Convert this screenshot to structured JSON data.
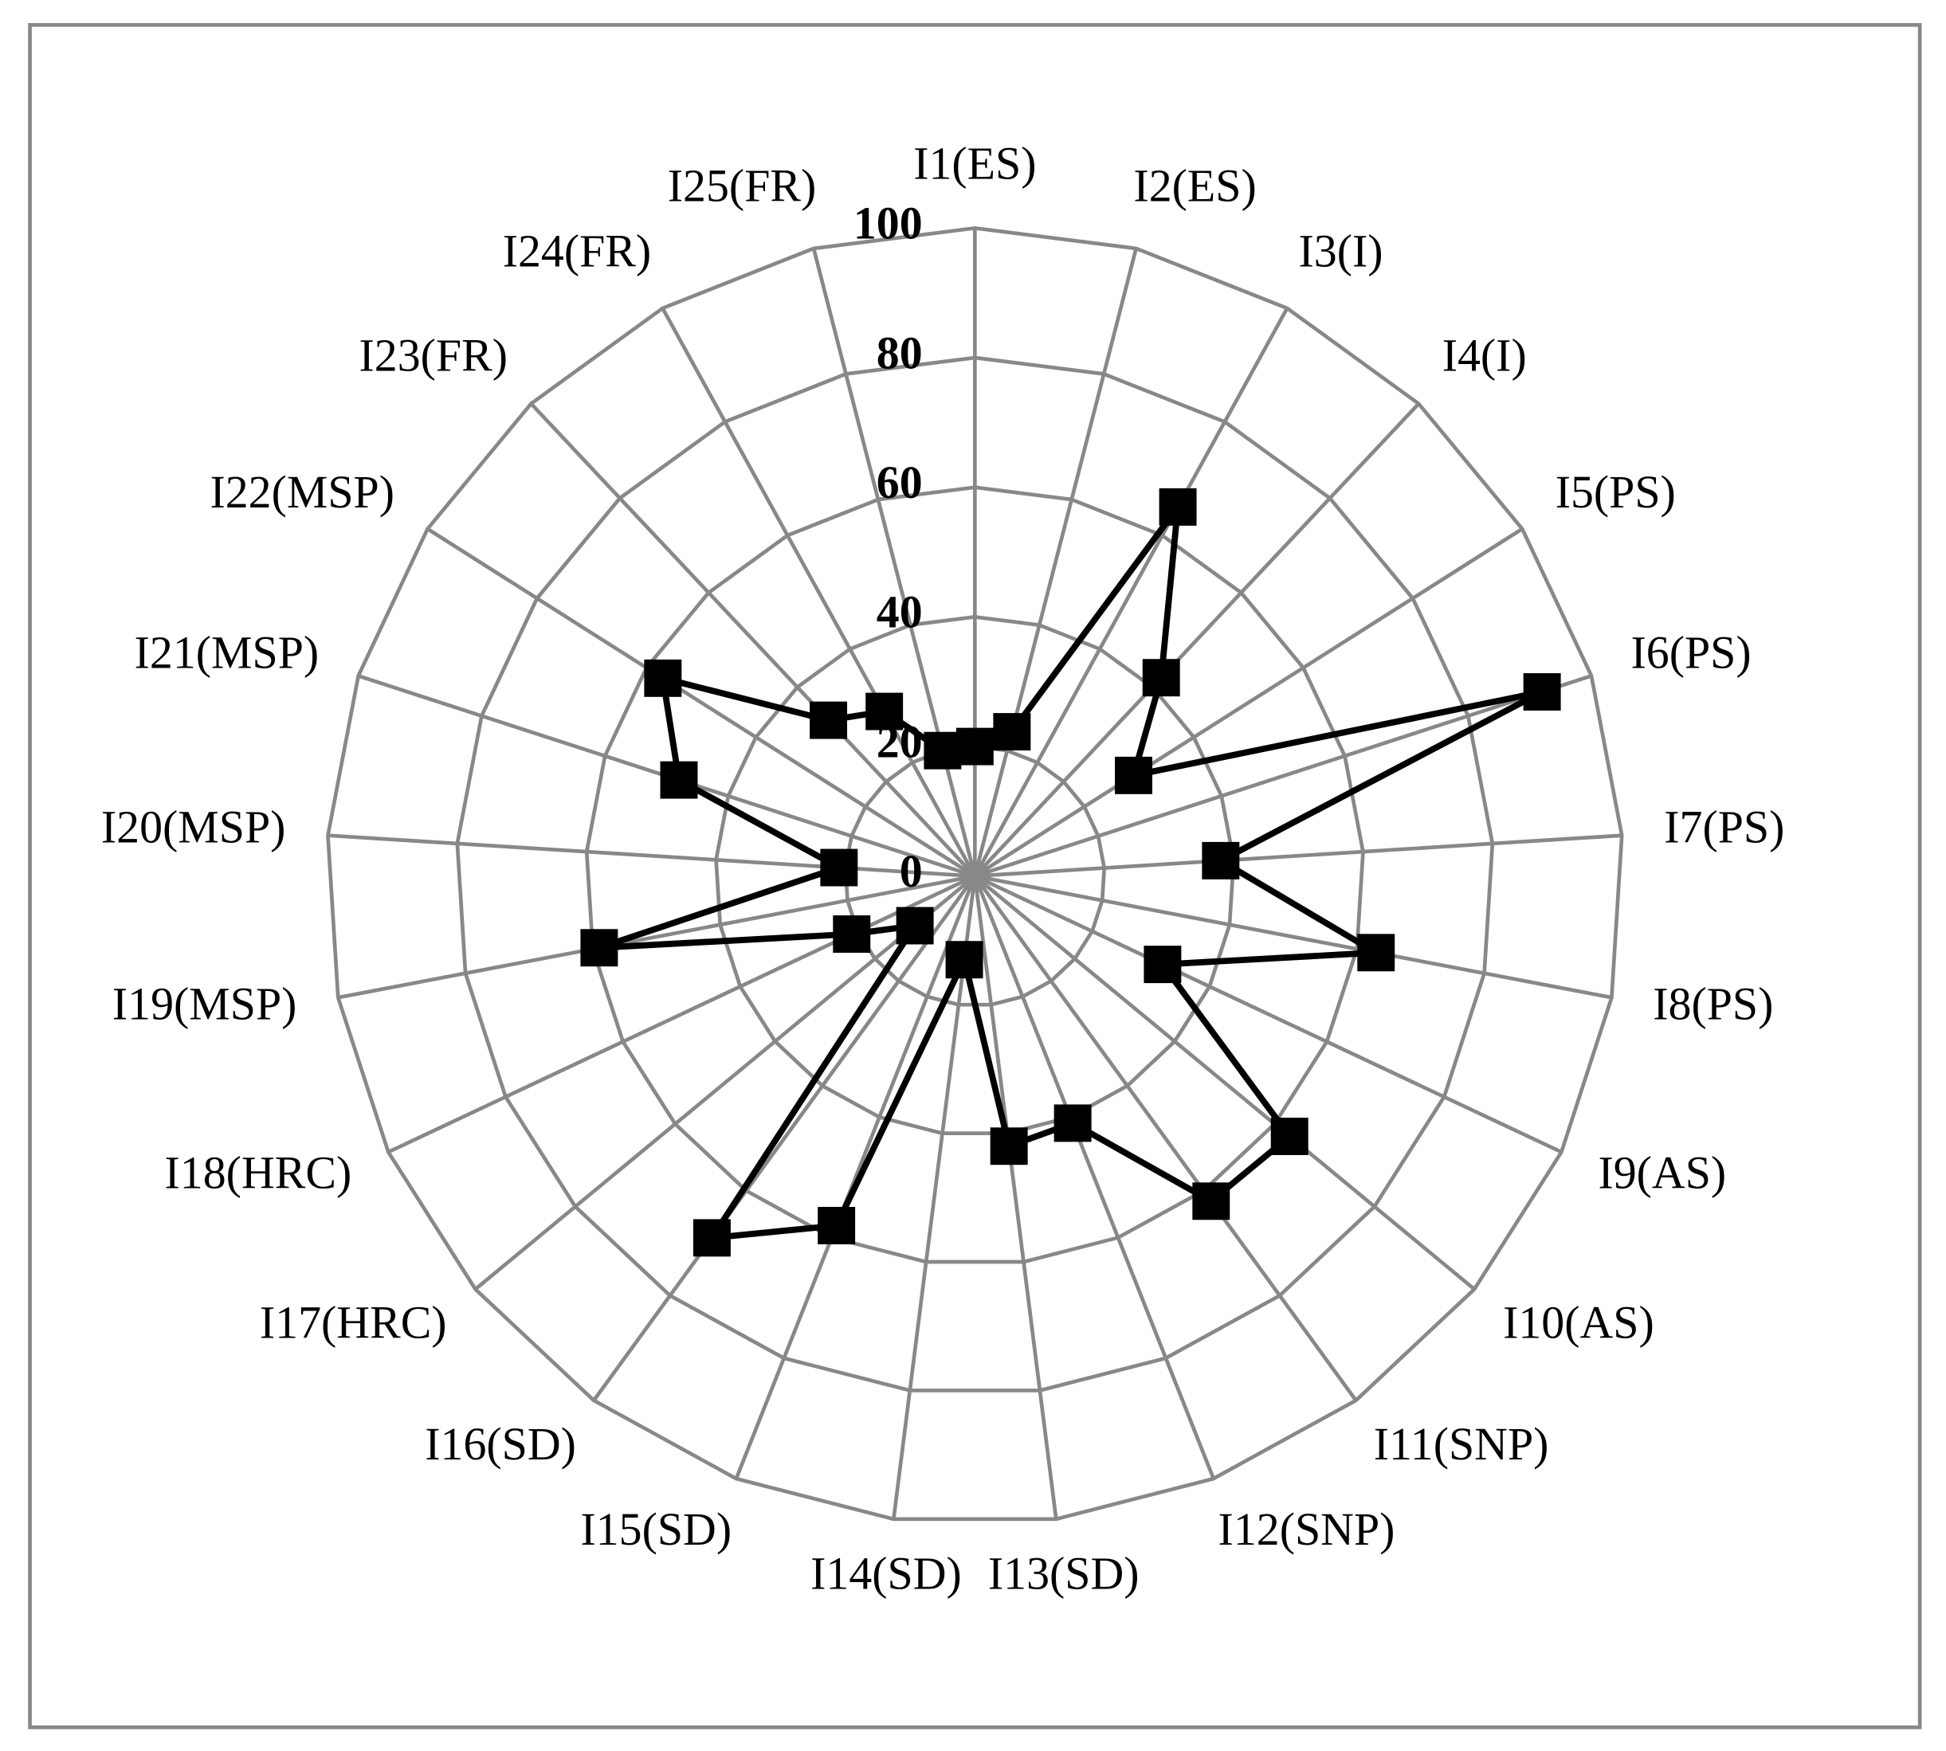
{
  "chart_data": {
    "type": "radar",
    "categories": [
      "I1(ES)",
      "I2(ES)",
      "I3(I)",
      "I4(I)",
      "I5(PS)",
      "I6(PS)",
      "I7(PS)",
      "I8(PS)",
      "I9(AS)",
      "I10(AS)",
      "I11(SNP)",
      "I12(SNP)",
      "I13(SD)",
      "I14(SD)",
      "I15(SD)",
      "I16(SD)",
      "I17(HRC)",
      "I18(HRC)",
      "I19(MSP)",
      "I20(MSP)",
      "I21(MSP)",
      "I22(MSP)",
      "I23(FR)",
      "I24(FR)",
      "I25(FR)"
    ],
    "values": [
      20,
      23,
      65,
      42,
      29,
      92,
      38,
      63,
      32,
      63,
      62,
      41,
      42,
      13,
      58,
      69,
      12,
      21,
      59,
      21,
      48,
      57,
      33,
      29,
      20
    ],
    "color": "#000000",
    "ylim": [
      0,
      100
    ],
    "yticks": [
      0,
      20,
      40,
      60,
      80,
      100
    ],
    "grid": true
  }
}
